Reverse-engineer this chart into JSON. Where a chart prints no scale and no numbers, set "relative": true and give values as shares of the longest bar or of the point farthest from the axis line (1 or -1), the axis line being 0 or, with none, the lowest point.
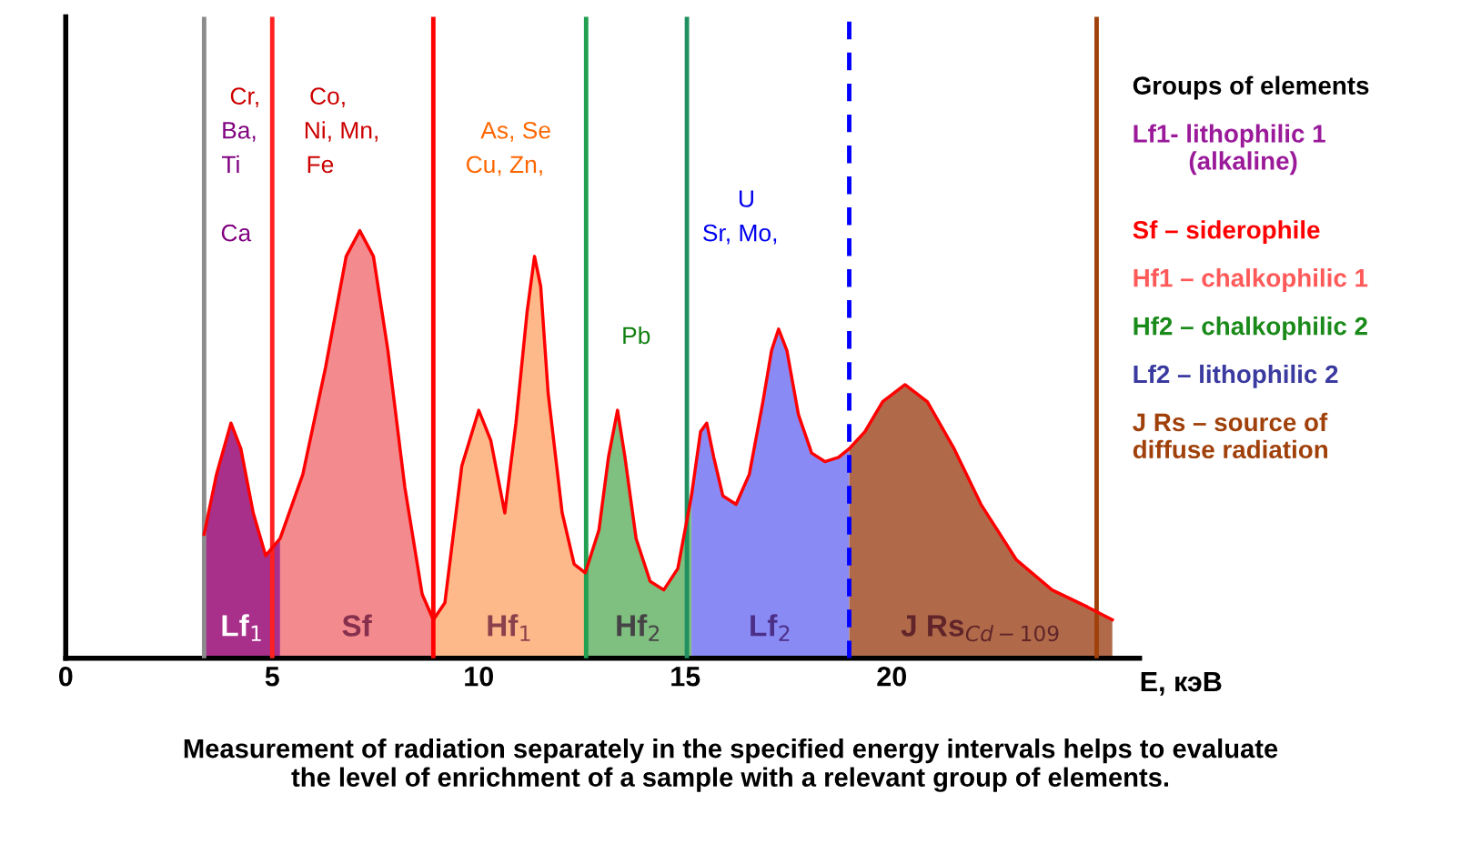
{
  "chart_data": {
    "type": "area",
    "relative": true,
    "xlabel": "E, кэВ",
    "xlim": [
      0,
      26
    ],
    "xticks": [
      0,
      5,
      10,
      15,
      20
    ],
    "grid": false,
    "series": [
      {
        "name": "Lf$_{1}$",
        "color": "#a8308a",
        "x": [
          3.35,
          3.65,
          4.0,
          4.24,
          4.54,
          4.84,
          5.19
        ],
        "values": [
          0.29,
          0.43,
          0.55,
          0.49,
          0.34,
          0.24,
          0.28
        ]
      },
      {
        "name": "Sf",
        "color": "#f38a8e",
        "x": [
          5.19,
          5.74,
          6.29,
          6.79,
          7.12,
          7.45,
          7.8,
          8.21,
          8.63,
          8.9
        ],
        "values": [
          0.28,
          0.43,
          0.68,
          0.94,
          1.0,
          0.94,
          0.72,
          0.4,
          0.15,
          0.09
        ]
      },
      {
        "name": "Hf$_{1}$",
        "color": "#fdb98a",
        "x": [
          8.9,
          9.18,
          9.59,
          10.0,
          10.29,
          10.63,
          10.9,
          11.17,
          11.35,
          11.5,
          11.68,
          12.02,
          12.31,
          12.58
        ],
        "values": [
          0.09,
          0.13,
          0.45,
          0.58,
          0.51,
          0.34,
          0.55,
          0.81,
          0.94,
          0.87,
          0.62,
          0.34,
          0.22,
          0.2
        ]
      },
      {
        "name": "Hf$_{2}$",
        "color": "#7fbf7f",
        "x": [
          12.58,
          12.91,
          13.14,
          13.36,
          13.54,
          13.81,
          14.15,
          14.48,
          14.82,
          15.15
        ],
        "values": [
          0.2,
          0.3,
          0.47,
          0.58,
          0.47,
          0.28,
          0.18,
          0.16,
          0.21,
          0.38
        ]
      },
      {
        "name": "Lf$_{2}$",
        "color": "#8a8af5",
        "x": [
          15.15,
          15.37,
          15.52,
          15.69,
          15.91,
          16.23,
          16.55,
          16.88,
          17.09,
          17.26,
          17.46,
          17.74,
          18.06,
          18.38,
          18.71,
          18.97
        ],
        "values": [
          0.38,
          0.53,
          0.55,
          0.47,
          0.38,
          0.36,
          0.43,
          0.6,
          0.72,
          0.77,
          0.72,
          0.57,
          0.48,
          0.46,
          0.47,
          0.49
        ]
      },
      {
        "name": "J Rs$_{Cd−109}$",
        "color": "#b06a4a",
        "x": [
          18.97,
          19.35,
          19.78,
          20.32,
          20.86,
          21.51,
          22.16,
          23.02,
          23.88,
          24.74,
          25.34
        ],
        "values": [
          0.49,
          0.53,
          0.6,
          0.64,
          0.6,
          0.49,
          0.36,
          0.23,
          0.16,
          0.12,
          0.09
        ]
      },
      {
        "type": "line",
        "color": "#ff0000",
        "x": [
          3.35,
          3.65,
          4.0,
          4.24,
          4.54,
          4.84,
          5.19,
          5.74,
          6.29,
          6.79,
          7.12,
          7.45,
          7.8,
          8.21,
          8.63,
          8.9,
          9.18,
          9.59,
          10.0,
          10.29,
          10.63,
          10.9,
          11.17,
          11.35,
          11.5,
          11.68,
          12.02,
          12.31,
          12.58,
          12.91,
          13.14,
          13.36,
          13.54,
          13.81,
          14.15,
          14.48,
          14.82,
          15.15,
          15.37,
          15.52,
          15.69,
          15.91,
          16.23,
          16.55,
          16.88,
          17.09,
          17.26,
          17.46,
          17.74,
          18.06,
          18.38,
          18.71,
          18.97,
          19.35,
          19.78,
          20.32,
          20.86,
          21.51,
          22.16,
          23.02,
          23.88,
          24.74,
          25.34
        ],
        "values": [
          0.29,
          0.43,
          0.55,
          0.49,
          0.34,
          0.24,
          0.28,
          0.43,
          0.68,
          0.94,
          1.0,
          0.94,
          0.72,
          0.4,
          0.15,
          0.09,
          0.13,
          0.45,
          0.58,
          0.51,
          0.34,
          0.55,
          0.81,
          0.94,
          0.87,
          0.62,
          0.34,
          0.22,
          0.2,
          0.3,
          0.47,
          0.58,
          0.47,
          0.28,
          0.18,
          0.16,
          0.21,
          0.38,
          0.53,
          0.55,
          0.47,
          0.38,
          0.36,
          0.43,
          0.6,
          0.72,
          0.77,
          0.72,
          0.57,
          0.48,
          0.46,
          0.47,
          0.49,
          0.53,
          0.6,
          0.64,
          0.6,
          0.49,
          0.36,
          0.23,
          0.16,
          0.12,
          0.09
        ]
      }
    ],
    "ref_lines": [
      {
        "axis": "x",
        "value": 3.35,
        "color": "#8c8c8c"
      },
      {
        "axis": "x",
        "value": 5.0,
        "color": "#ff2020"
      },
      {
        "axis": "x",
        "value": 8.9,
        "color": "#ff0000"
      },
      {
        "axis": "x",
        "value": 12.6,
        "color": "#20a050"
      },
      {
        "axis": "x",
        "value": 15.04,
        "color": "#209060"
      },
      {
        "axis": "x",
        "value": 18.97,
        "color": "#0000ff",
        "line_style": "dashed"
      },
      {
        "axis": "x",
        "value": 24.96,
        "color": "#a0400a"
      }
    ],
    "annotations": [
      "Cr,",
      "Ba,",
      "Ti",
      "Ca",
      "Co,",
      "Ni, Mn,",
      "Fe",
      "As, Se",
      "Cu, Zn,",
      "Pb",
      "U",
      "Sr, Mo,",
      "Groups of elements",
      "Lf1- lithophilic 1\n        (alkaline)",
      "Sf – siderophile",
      "Hf1 – chalkophilic 1",
      "Hf2 – chalkophilic 2",
      "Lf2 – lithophilic 2",
      "J Rs – source of\ndiffuse radiation",
      "Measurement of radiation separately in the specified energy intervals helps to evaluate\nthe level of enrichment of a sample with a relevant group of elements."
    ]
  }
}
